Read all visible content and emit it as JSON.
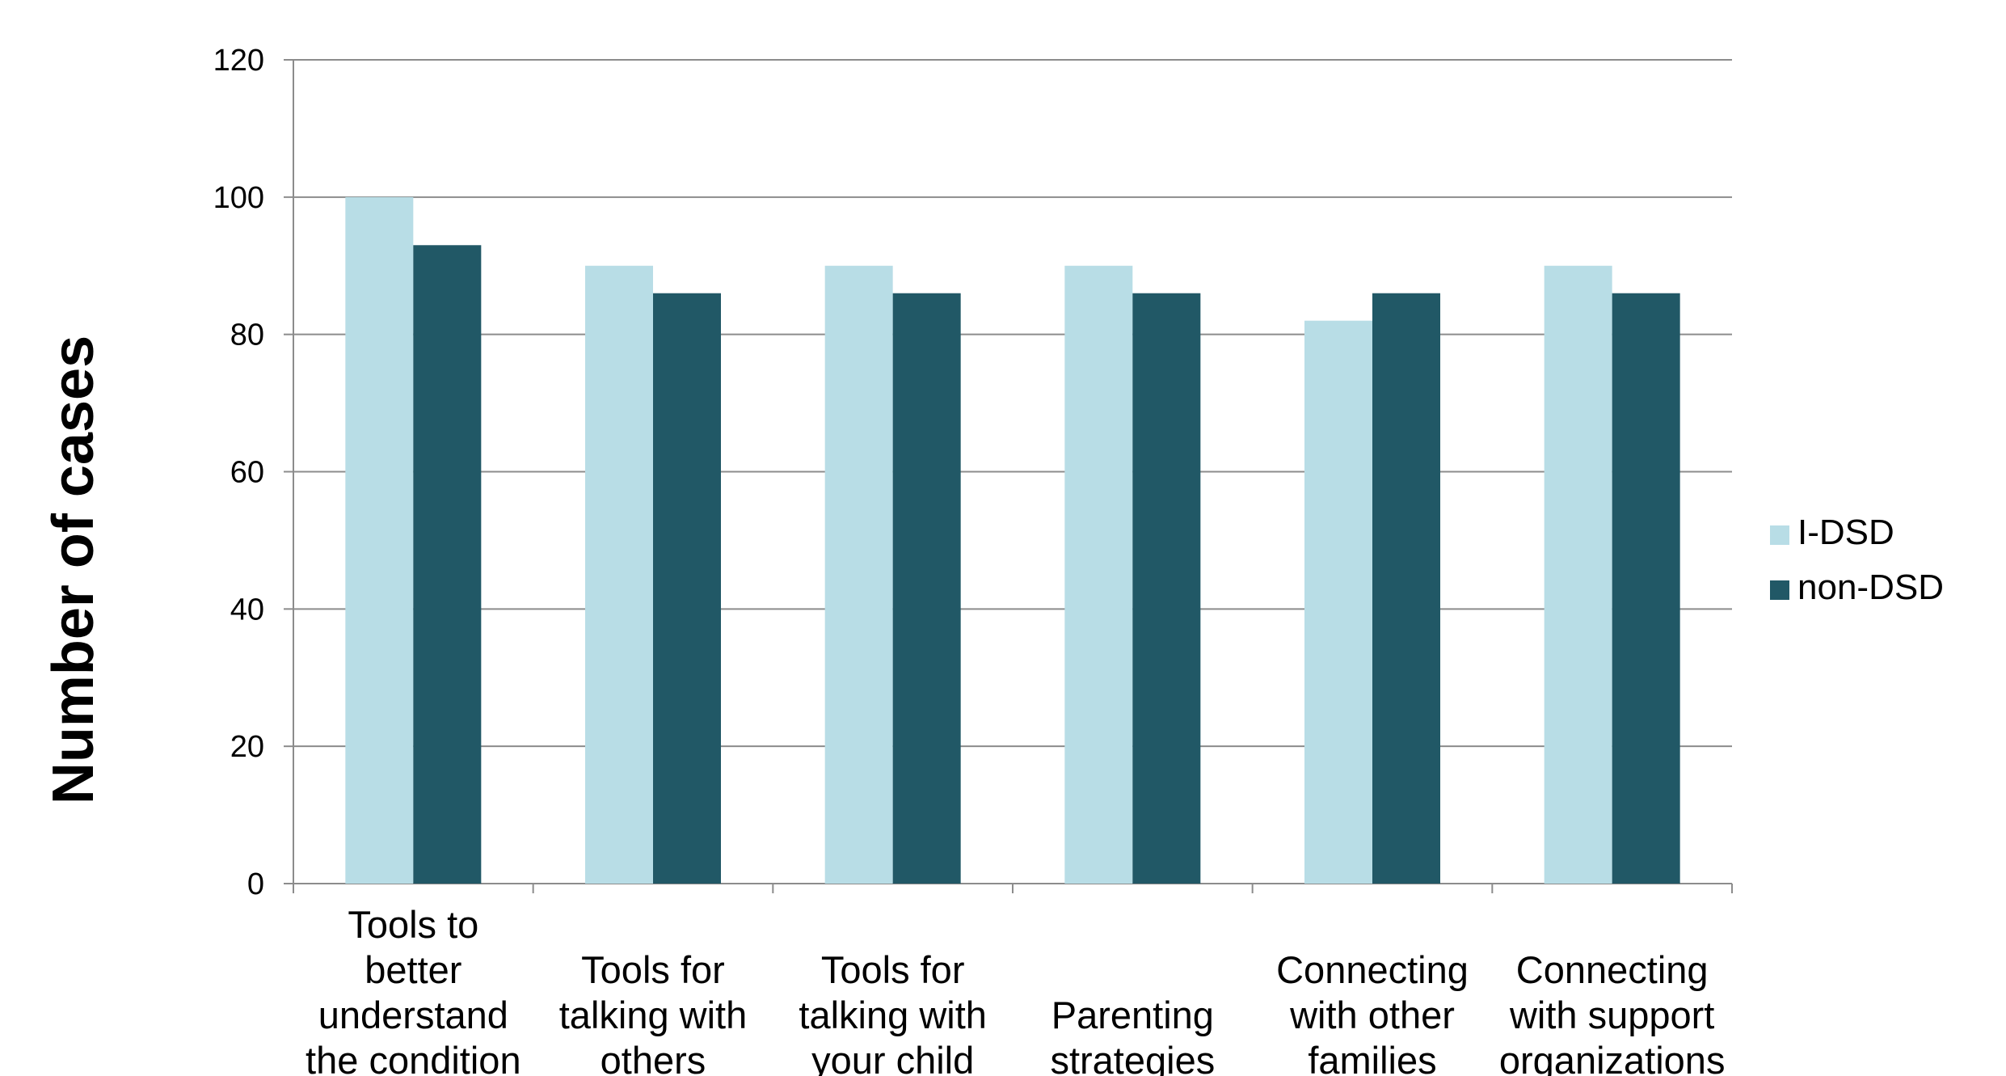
{
  "chart_data": {
    "type": "bar",
    "title": "",
    "xlabel": "",
    "ylabel": "Number of cases",
    "ylim": [
      0,
      120
    ],
    "yticks": [
      0,
      20,
      40,
      60,
      80,
      100,
      120
    ],
    "grid": true,
    "legend_position": "right",
    "categories": [
      [
        "Tools to",
        "better",
        "understand",
        "the condition"
      ],
      [
        "Tools for",
        "talking with",
        "others"
      ],
      [
        "Tools for",
        "talking with",
        "your child"
      ],
      [
        "Parenting",
        "strategies"
      ],
      [
        "Connecting",
        "with other",
        "families"
      ],
      [
        "Connecting",
        "with support",
        "organizations"
      ]
    ],
    "series": [
      {
        "name": "I-DSD",
        "color": "#b8dde6",
        "values": [
          100,
          90,
          90,
          90,
          82,
          90
        ]
      },
      {
        "name": "non-DSD",
        "color": "#215866",
        "values": [
          93,
          86,
          86,
          86,
          86,
          86
        ]
      }
    ]
  }
}
